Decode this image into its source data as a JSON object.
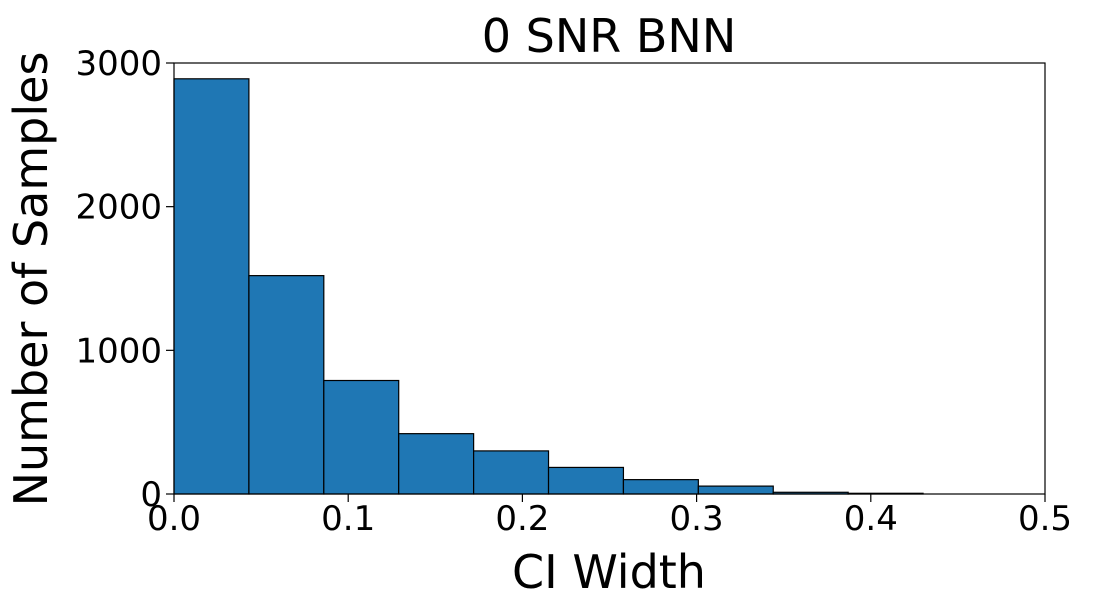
{
  "chart_data": {
    "type": "bar",
    "title": "0 SNR BNN",
    "xlabel": "CI Width",
    "ylabel": "Number of Samples",
    "xlim": [
      0.0,
      0.5
    ],
    "ylim": [
      0,
      3000
    ],
    "xticks": [
      0.0,
      0.1,
      0.2,
      0.3,
      0.4,
      0.5
    ],
    "xtick_labels": [
      "0.0",
      "0.1",
      "0.2",
      "0.3",
      "0.4",
      "0.5"
    ],
    "yticks": [
      0,
      1000,
      2000,
      3000
    ],
    "ytick_labels": [
      "0",
      "1000",
      "2000",
      "3000"
    ],
    "bar_color": "#1f77b4",
    "grid": false,
    "legend": "none",
    "bins": [
      {
        "x0": 0.0,
        "x1": 0.043,
        "value": 2890
      },
      {
        "x0": 0.043,
        "x1": 0.086,
        "value": 1520
      },
      {
        "x0": 0.086,
        "x1": 0.129,
        "value": 790
      },
      {
        "x0": 0.129,
        "x1": 0.172,
        "value": 420
      },
      {
        "x0": 0.172,
        "x1": 0.215,
        "value": 300
      },
      {
        "x0": 0.215,
        "x1": 0.258,
        "value": 185
      },
      {
        "x0": 0.258,
        "x1": 0.301,
        "value": 100
      },
      {
        "x0": 0.301,
        "x1": 0.344,
        "value": 55
      },
      {
        "x0": 0.344,
        "x1": 0.387,
        "value": 12
      },
      {
        "x0": 0.387,
        "x1": 0.43,
        "value": 5
      }
    ]
  }
}
